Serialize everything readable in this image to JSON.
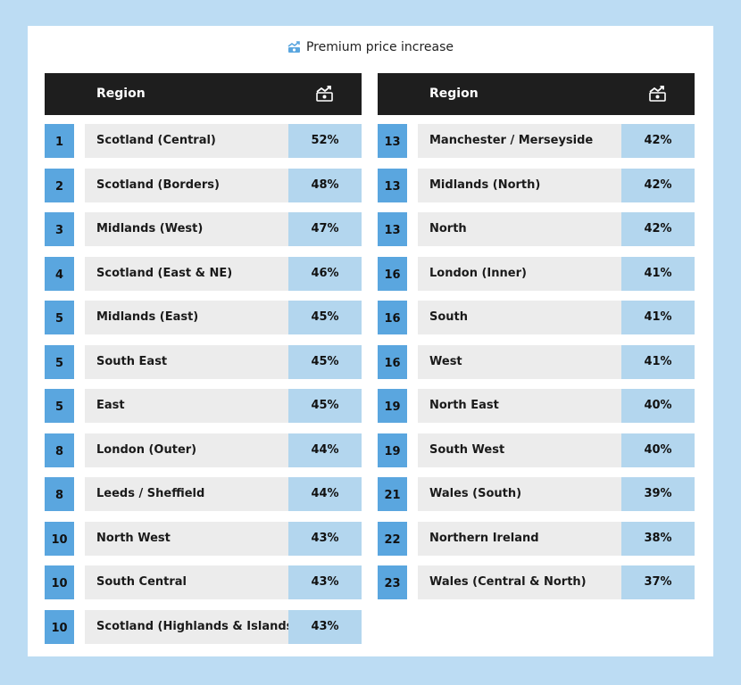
{
  "title": "Premium price increase",
  "header": {
    "region_label": "Region"
  },
  "colors": {
    "background": "#bcdcf3",
    "rank": "#5aa6df",
    "region": "#ececec",
    "value": "#b3d6ee",
    "header": "#1e1e1e"
  },
  "icons": {
    "title": "money-chart-icon",
    "header": "money-chart-icon"
  },
  "chart_data": {
    "type": "table",
    "title": "Premium price increase",
    "columns": [
      "",
      "Region",
      ""
    ],
    "left": [
      {
        "rank": "1",
        "region": "Scotland (Central)",
        "value": "52%"
      },
      {
        "rank": "2",
        "region": "Scotland (Borders)",
        "value": "48%"
      },
      {
        "rank": "3",
        "region": "Midlands (West)",
        "value": "47%"
      },
      {
        "rank": "4",
        "region": "Scotland (East & NE)",
        "value": "46%"
      },
      {
        "rank": "5",
        "region": "Midlands (East)",
        "value": "45%"
      },
      {
        "rank": "5",
        "region": "South East",
        "value": "45%"
      },
      {
        "rank": "5",
        "region": "East",
        "value": "45%"
      },
      {
        "rank": "8",
        "region": "London (Outer)",
        "value": "44%"
      },
      {
        "rank": "8",
        "region": "Leeds / Sheffield",
        "value": "44%"
      },
      {
        "rank": "10",
        "region": "North West",
        "value": "43%"
      },
      {
        "rank": "10",
        "region": "South Central",
        "value": "43%"
      },
      {
        "rank": "10",
        "region": "Scotland (Highlands & Islands)",
        "value": "43%"
      }
    ],
    "right": [
      {
        "rank": "13",
        "region": "Manchester / Merseyside",
        "value": "42%"
      },
      {
        "rank": "13",
        "region": "Midlands (North)",
        "value": "42%"
      },
      {
        "rank": "13",
        "region": "North",
        "value": "42%"
      },
      {
        "rank": "16",
        "region": "London (Inner)",
        "value": "41%"
      },
      {
        "rank": "16",
        "region": "South",
        "value": "41%"
      },
      {
        "rank": "16",
        "region": "West",
        "value": "41%"
      },
      {
        "rank": "19",
        "region": "North East",
        "value": "40%"
      },
      {
        "rank": "19",
        "region": "South West",
        "value": "40%"
      },
      {
        "rank": "21",
        "region": "Wales (South)",
        "value": "39%"
      },
      {
        "rank": "22",
        "region": "Northern Ireland",
        "value": "38%"
      },
      {
        "rank": "23",
        "region": "Wales (Central & North)",
        "value": "37%"
      }
    ]
  }
}
